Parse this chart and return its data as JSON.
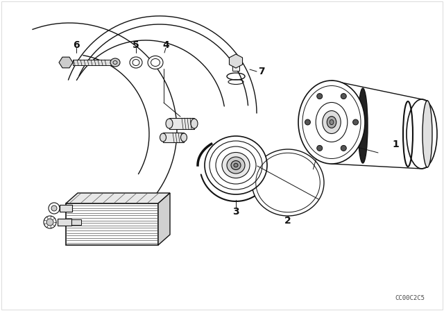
{
  "bg_color": "#ffffff",
  "lc": "#111111",
  "watermark": "CC00C2C5",
  "figsize": [
    6.4,
    4.48
  ],
  "dpi": 100
}
